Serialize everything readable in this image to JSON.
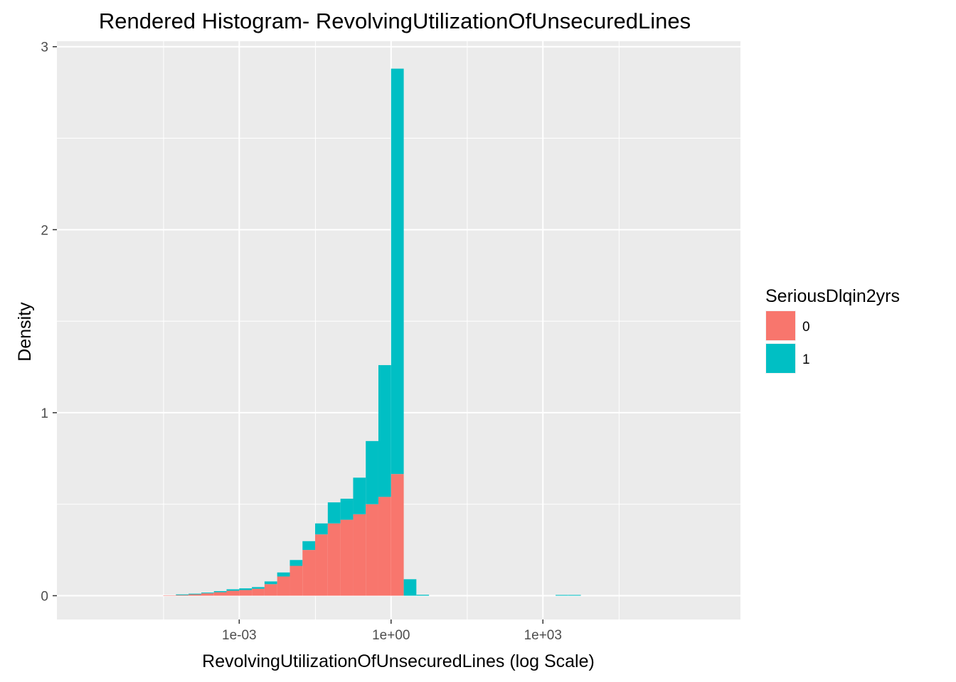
{
  "chart_data": {
    "type": "bar",
    "subtype": "stacked-histogram",
    "title": "Rendered Histogram- RevolvingUtilizationOfUnsecuredLines",
    "xlabel": "RevolvingUtilizationOfUnsecuredLines (log Scale)",
    "ylabel": "Density",
    "x_scale": "log10",
    "xlim": [
      2.5e-07,
      8000000.0
    ],
    "ylim": [
      -0.13,
      3.03
    ],
    "x_ticks": [
      {
        "value": 0.001,
        "label": "1e-03"
      },
      {
        "value": 1,
        "label": "1e+00"
      },
      {
        "value": 1000,
        "label": "1e+03"
      }
    ],
    "x_minor_ticks": [
      3.2e-05,
      0.032,
      32,
      32000
    ],
    "y_ticks": [
      {
        "value": 0,
        "label": "0"
      },
      {
        "value": 1,
        "label": "1"
      },
      {
        "value": 2,
        "label": "2"
      },
      {
        "value": 3,
        "label": "3"
      }
    ],
    "y_minor_ticks": [
      0.5,
      1.5,
      2.5
    ],
    "bin_width_log10": 0.25,
    "bins": [
      {
        "x_start": 3.16e-05,
        "x_end": 5.62e-05,
        "values": {
          "0": 0.002,
          "1": 0.0
        }
      },
      {
        "x_start": 5.62e-05,
        "x_end": 0.0001,
        "values": {
          "0": 0.005,
          "1": 0.002
        }
      },
      {
        "x_start": 0.0001,
        "x_end": 0.000178,
        "values": {
          "0": 0.008,
          "1": 0.003
        }
      },
      {
        "x_start": 0.000178,
        "x_end": 0.000316,
        "values": {
          "0": 0.013,
          "1": 0.004
        }
      },
      {
        "x_start": 0.000316,
        "x_end": 0.000562,
        "values": {
          "0": 0.019,
          "1": 0.006
        }
      },
      {
        "x_start": 0.000562,
        "x_end": 0.001,
        "values": {
          "0": 0.027,
          "1": 0.008
        }
      },
      {
        "x_start": 0.001,
        "x_end": 0.00178,
        "values": {
          "0": 0.031,
          "1": 0.009
        }
      },
      {
        "x_start": 0.00178,
        "x_end": 0.00316,
        "values": {
          "0": 0.038,
          "1": 0.009
        }
      },
      {
        "x_start": 0.00316,
        "x_end": 0.00562,
        "values": {
          "0": 0.063,
          "1": 0.015
        }
      },
      {
        "x_start": 0.00562,
        "x_end": 0.01,
        "values": {
          "0": 0.105,
          "1": 0.022
        }
      },
      {
        "x_start": 0.01,
        "x_end": 0.0178,
        "values": {
          "0": 0.163,
          "1": 0.032
        }
      },
      {
        "x_start": 0.0178,
        "x_end": 0.0316,
        "values": {
          "0": 0.25,
          "1": 0.048
        }
      },
      {
        "x_start": 0.0316,
        "x_end": 0.0562,
        "values": {
          "0": 0.335,
          "1": 0.06
        }
      },
      {
        "x_start": 0.0562,
        "x_end": 0.1,
        "values": {
          "0": 0.395,
          "1": 0.115
        }
      },
      {
        "x_start": 0.1,
        "x_end": 0.178,
        "values": {
          "0": 0.415,
          "1": 0.115
        }
      },
      {
        "x_start": 0.178,
        "x_end": 0.316,
        "values": {
          "0": 0.445,
          "1": 0.2
        }
      },
      {
        "x_start": 0.316,
        "x_end": 0.562,
        "values": {
          "0": 0.5,
          "1": 0.345
        }
      },
      {
        "x_start": 0.562,
        "x_end": 1.0,
        "values": {
          "0": 0.54,
          "1": 0.72
        }
      },
      {
        "x_start": 1.0,
        "x_end": 1.78,
        "values": {
          "0": 0.665,
          "1": 2.215
        }
      },
      {
        "x_start": 1.78,
        "x_end": 3.16,
        "values": {
          "0": 0.0,
          "1": 0.09
        }
      },
      {
        "x_start": 3.16,
        "x_end": 5.62,
        "values": {
          "0": 0.0,
          "1": 0.005
        }
      },
      {
        "x_start": 1780,
        "x_end": 3160,
        "values": {
          "0": 0.0,
          "1": 0.004
        }
      },
      {
        "x_start": 3160,
        "x_end": 5620,
        "values": {
          "0": 0.0,
          "1": 0.004
        }
      }
    ],
    "legend": {
      "title": "SeriousDlqin2yrs",
      "position": "right",
      "items": [
        {
          "label": "0",
          "color": "#F8766D"
        },
        {
          "label": "1",
          "color": "#00BFC4"
        }
      ]
    },
    "panel_background": "#EBEBEB",
    "grid": true,
    "grid_color": "#FFFFFF"
  }
}
